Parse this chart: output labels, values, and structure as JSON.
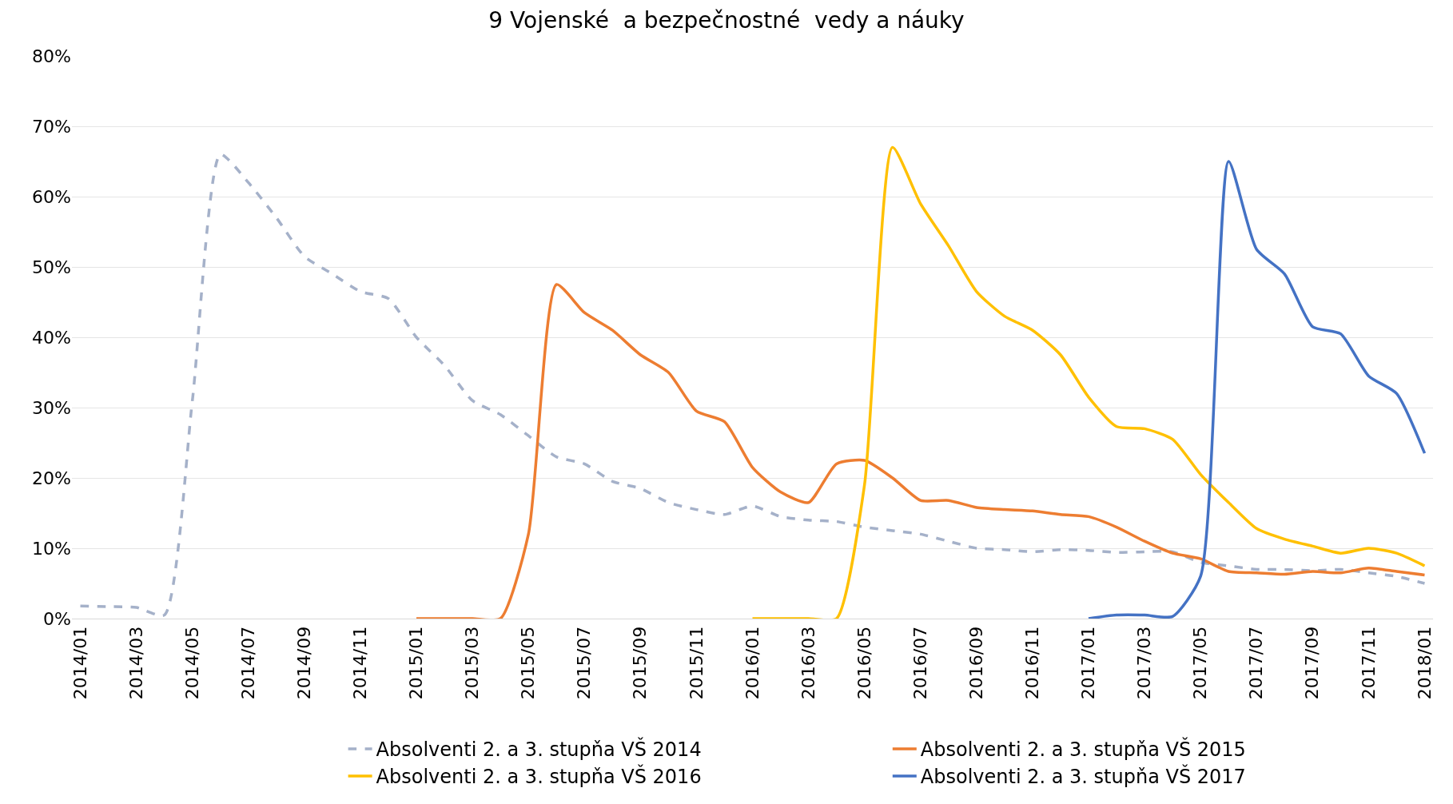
{
  "chart_data": {
    "type": "line",
    "title": "9 Vojenské  a bezpečnostné  vedy a náuky",
    "categories": [
      "2014/01",
      null,
      "2014/03",
      null,
      "2014/05",
      null,
      "2014/07",
      null,
      "2014/09",
      null,
      "2014/11",
      null,
      "2015/01",
      null,
      "2015/03",
      null,
      "2015/05",
      null,
      "2015/07",
      null,
      "2015/09",
      null,
      "2015/11",
      null,
      "2016/01",
      null,
      "2016/03",
      null,
      "2016/05",
      null,
      "2016/07",
      null,
      "2016/09",
      null,
      "2016/11",
      null,
      "2017/01",
      null,
      "2017/03",
      null,
      "2017/05",
      null,
      "2017/07",
      null,
      "2017/09",
      null,
      "2017/11",
      null,
      "2018/01"
    ],
    "series": [
      {
        "name": "Absolventi 2. a 3. stupňa VŠ 2014",
        "color": "#a5b1c9",
        "line_style": "dashed",
        "values": [
          1.8,
          1.7,
          1.6,
          0.5,
          31,
          66,
          62,
          57,
          51.5,
          49,
          46.5,
          45.5,
          40,
          36,
          31,
          29,
          26,
          23,
          22,
          19.5,
          18.5,
          16.5,
          15.5,
          14.8,
          16,
          14.5,
          14,
          13.8,
          13,
          12.5,
          12,
          11,
          10,
          9.8,
          9.5,
          9.8,
          9.7,
          9.4,
          9.5,
          9.5,
          8,
          7.5,
          7,
          7,
          6.8,
          7,
          6.5,
          6,
          5
        ]
      },
      {
        "name": "Absolventi 2. a 3. stupňa VŠ 2015",
        "color": "#ed7d31",
        "line_style": "solid",
        "values": [
          null,
          null,
          null,
          null,
          null,
          null,
          null,
          null,
          null,
          null,
          null,
          null,
          0,
          0,
          0,
          0,
          12,
          47.5,
          43.5,
          41,
          37.5,
          35,
          29.5,
          28,
          21.5,
          18,
          16.5,
          22,
          22.5,
          20,
          16.8,
          16.8,
          15.8,
          15.5,
          15.3,
          14.8,
          14.5,
          13,
          11,
          9.3,
          8.5,
          6.7,
          6.5,
          6.3,
          6.7,
          6.5,
          7.2,
          6.7,
          6.2
        ]
      },
      {
        "name": "Absolventi 2. a 3. stupňa VŠ 2016",
        "color": "#ffc000",
        "line_style": "solid",
        "values": [
          null,
          null,
          null,
          null,
          null,
          null,
          null,
          null,
          null,
          null,
          null,
          null,
          null,
          null,
          null,
          null,
          null,
          null,
          null,
          null,
          null,
          null,
          null,
          null,
          0,
          0,
          0,
          0,
          19,
          67,
          59,
          53,
          46.5,
          43,
          41,
          37.5,
          31.5,
          27.3,
          27,
          25.5,
          20.5,
          16.5,
          12.8,
          11.3,
          10.3,
          9.3,
          10,
          9.3,
          7.5
        ]
      },
      {
        "name": "Absolventi 2. a 3. stupňa VŠ 2017",
        "color": "#4472c4",
        "line_style": "solid",
        "values": [
          null,
          null,
          null,
          null,
          null,
          null,
          null,
          null,
          null,
          null,
          null,
          null,
          null,
          null,
          null,
          null,
          null,
          null,
          null,
          null,
          null,
          null,
          null,
          null,
          null,
          null,
          null,
          null,
          null,
          null,
          null,
          null,
          null,
          null,
          null,
          null,
          0,
          0.5,
          0.5,
          0.3,
          6,
          65,
          52.5,
          49,
          41.5,
          40.5,
          34.5,
          32,
          23.5
        ]
      }
    ],
    "ylim": [
      0,
      80
    ],
    "yticks": [
      {
        "value": 0,
        "label": "0%"
      },
      {
        "value": 10,
        "label": "10%"
      },
      {
        "value": 20,
        "label": "20%"
      },
      {
        "value": 30,
        "label": "30%"
      },
      {
        "value": 40,
        "label": "40%"
      },
      {
        "value": 50,
        "label": "50%"
      },
      {
        "value": 60,
        "label": "60%"
      },
      {
        "value": 70,
        "label": "70%"
      },
      {
        "value": 80,
        "label": "80%"
      }
    ],
    "grid": "y",
    "legend": "bottom",
    "marker": "none"
  }
}
